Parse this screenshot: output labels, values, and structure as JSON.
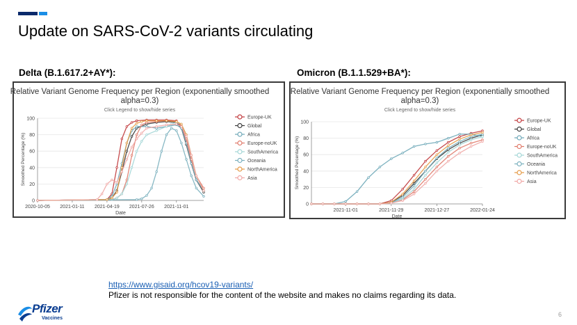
{
  "slide": {
    "title": "Update on SARS-CoV-2 variants circulating",
    "left_label": "Delta (B.1.617.2+AY*):",
    "right_label": "Omicron (B.1.1.529+BA*):",
    "link": "https://www.gisaid.org/hcov19-variants/",
    "disclaimer": "Pfizer is not responsible for the content of the website and makes no claims regarding its data.",
    "page_number": "6",
    "logo_text": "Pfizer",
    "logo_sub": "Vaccines"
  },
  "colors": {
    "Europe-UK": "#c0383b",
    "Global": "#3a3a3a",
    "Africa": "#6ea8b8",
    "Europe-noUK": "#e07a6a",
    "SouthAmerica": "#a3d6d6",
    "Oceania": "#7ab0be",
    "NorthAmerica": "#e59a45",
    "Asia": "#f0a8a6"
  },
  "chart_data": [
    {
      "type": "line",
      "title": "Relative Variant Genome Frequency per Region (exponentially smoothed alpha=0.3)",
      "subtitle": "Click Legend to show/hide series",
      "xlabel": "Date",
      "ylabel": "Smoothed Percentage (%)",
      "ylim": [
        0,
        100
      ],
      "yticks": [
        "0",
        "20",
        "40",
        "60",
        "80",
        "100"
      ],
      "x_tick_labels": [
        "2020-10-05",
        "2021-01-11",
        "2021-04-19",
        "2021-07-26",
        "2021-11-01"
      ],
      "x_tick_weeks": [
        0,
        14,
        28,
        42,
        56
      ],
      "x_range_weeks": [
        0,
        67
      ],
      "legend": [
        "Europe-UK",
        "Global",
        "Africa",
        "Europe-noUK",
        "SouthAmerica",
        "Oceania",
        "NorthAmerica",
        "Asia"
      ],
      "legend_position": "right",
      "series": [
        {
          "name": "Europe-UK",
          "x": [
            0,
            28,
            30,
            32,
            34,
            36,
            38,
            40,
            44,
            48,
            52,
            56,
            58,
            60,
            62,
            64,
            67
          ],
          "y": [
            0,
            1,
            8,
            40,
            75,
            90,
            95,
            97,
            98,
            98,
            98,
            97,
            90,
            70,
            45,
            25,
            12
          ]
        },
        {
          "name": "Global",
          "x": [
            0,
            28,
            30,
            32,
            34,
            36,
            38,
            40,
            44,
            48,
            52,
            56,
            58,
            60,
            62,
            64,
            67
          ],
          "y": [
            0,
            1,
            3,
            12,
            35,
            60,
            78,
            88,
            93,
            95,
            96,
            95,
            88,
            68,
            45,
            25,
            10
          ]
        },
        {
          "name": "Africa",
          "x": [
            0,
            28,
            30,
            32,
            34,
            36,
            38,
            40,
            44,
            48,
            52,
            56,
            58,
            60,
            62,
            64,
            67
          ],
          "y": [
            0,
            1,
            5,
            20,
            45,
            70,
            85,
            90,
            90,
            88,
            90,
            92,
            88,
            70,
            45,
            25,
            12
          ]
        },
        {
          "name": "Europe-noUK",
          "x": [
            0,
            30,
            32,
            34,
            36,
            38,
            40,
            42,
            44,
            48,
            52,
            56,
            58,
            60,
            62,
            64,
            67
          ],
          "y": [
            0,
            1,
            3,
            8,
            25,
            55,
            80,
            92,
            95,
            96,
            97,
            96,
            92,
            75,
            50,
            30,
            15
          ]
        },
        {
          "name": "SouthAmerica",
          "x": [
            0,
            30,
            32,
            34,
            36,
            38,
            40,
            42,
            44,
            48,
            52,
            54,
            56,
            58,
            60,
            62,
            64,
            67
          ],
          "y": [
            0,
            1,
            3,
            8,
            20,
            40,
            60,
            72,
            80,
            85,
            90,
            93,
            95,
            93,
            80,
            55,
            30,
            12
          ]
        },
        {
          "name": "Oceania",
          "x": [
            0,
            40,
            42,
            44,
            46,
            48,
            50,
            52,
            54,
            56,
            58,
            60,
            62,
            64,
            67
          ],
          "y": [
            0,
            1,
            2,
            6,
            15,
            35,
            60,
            80,
            88,
            85,
            70,
            50,
            30,
            15,
            5
          ]
        },
        {
          "name": "NorthAmerica",
          "x": [
            0,
            28,
            30,
            32,
            34,
            36,
            38,
            40,
            42,
            44,
            48,
            52,
            56,
            58,
            60,
            62,
            64,
            67
          ],
          "y": [
            0,
            1,
            3,
            10,
            40,
            70,
            88,
            94,
            96,
            97,
            97,
            97,
            96,
            93,
            80,
            55,
            30,
            12
          ]
        },
        {
          "name": "Asia",
          "x": [
            0,
            24,
            26,
            28,
            30,
            32,
            34,
            36,
            38,
            40,
            42,
            44,
            48,
            52,
            56,
            58,
            60,
            62,
            64,
            67
          ],
          "y": [
            0,
            1,
            8,
            20,
            25,
            22,
            35,
            50,
            65,
            75,
            82,
            88,
            90,
            92,
            93,
            90,
            78,
            55,
            30,
            12
          ]
        }
      ]
    },
    {
      "type": "line",
      "title": "Relative Variant Genome Frequency per Region (exponentially smoothed alpha=0.3)",
      "subtitle": "Click Legend to show/hide series",
      "xlabel": "Date",
      "ylabel": "Smoothed Percentage (%)",
      "ylim": [
        0,
        100
      ],
      "yticks": [
        "0",
        "20",
        "40",
        "60",
        "80",
        "100"
      ],
      "x_tick_labels": [
        "2021-11-01",
        "2021-11-29",
        "2021-12-27",
        "2022-01-24"
      ],
      "x_tick_weeks": [
        0,
        4,
        8,
        12
      ],
      "x_range_weeks": [
        -3,
        12
      ],
      "legend": [
        "Europe-UK",
        "Global",
        "Africa",
        "Europe-noUK",
        "SouthAmerica",
        "Oceania",
        "NorthAmerica",
        "Asia"
      ],
      "legend_position": "right",
      "series": [
        {
          "name": "Europe-UK",
          "x": [
            -3,
            -2,
            -1,
            0,
            1,
            2,
            3,
            4,
            5,
            6,
            7,
            8,
            9,
            10,
            11,
            12
          ],
          "y": [
            0,
            0,
            0,
            0,
            0,
            0,
            0,
            4,
            18,
            35,
            52,
            65,
            75,
            82,
            86,
            89
          ]
        },
        {
          "name": "Global",
          "x": [
            -3,
            -2,
            -1,
            0,
            1,
            2,
            3,
            4,
            5,
            6,
            7,
            8,
            9,
            10,
            11,
            12
          ],
          "y": [
            0,
            0,
            0,
            0,
            0,
            0,
            0,
            2,
            10,
            25,
            40,
            55,
            66,
            74,
            80,
            84
          ]
        },
        {
          "name": "Africa",
          "x": [
            -3,
            -2,
            -1,
            0,
            1,
            2,
            3,
            4,
            5,
            6,
            7,
            8,
            9,
            10,
            11,
            12
          ],
          "y": [
            0,
            0,
            0,
            3,
            15,
            32,
            45,
            55,
            62,
            70,
            73,
            75,
            80,
            85,
            85,
            82
          ]
        },
        {
          "name": "Europe-noUK",
          "x": [
            -3,
            -2,
            -1,
            0,
            1,
            2,
            3,
            4,
            5,
            6,
            7,
            8,
            9,
            10,
            11,
            12
          ],
          "y": [
            0,
            0,
            0,
            0,
            0,
            0,
            0,
            1,
            5,
            15,
            30,
            45,
            58,
            68,
            74,
            78
          ]
        },
        {
          "name": "SouthAmerica",
          "x": [
            -3,
            -2,
            -1,
            0,
            1,
            2,
            3,
            4,
            5,
            6,
            7,
            8,
            9,
            10,
            11,
            12
          ],
          "y": [
            0,
            0,
            0,
            0,
            0,
            0,
            0,
            1,
            6,
            18,
            35,
            50,
            63,
            72,
            78,
            82
          ]
        },
        {
          "name": "Oceania",
          "x": [
            -3,
            -2,
            -1,
            0,
            1,
            2,
            3,
            4,
            5,
            6,
            7,
            8,
            9,
            10,
            11,
            12
          ],
          "y": [
            0,
            0,
            0,
            0,
            0,
            0,
            0,
            1,
            8,
            22,
            40,
            56,
            68,
            76,
            82,
            85
          ]
        },
        {
          "name": "NorthAmerica",
          "x": [
            -3,
            -2,
            -1,
            0,
            1,
            2,
            3,
            4,
            5,
            6,
            7,
            8,
            9,
            10,
            11,
            12
          ],
          "y": [
            0,
            0,
            0,
            0,
            0,
            0,
            0,
            2,
            12,
            28,
            45,
            60,
            71,
            79,
            84,
            87
          ]
        },
        {
          "name": "Asia",
          "x": [
            -3,
            -2,
            -1,
            0,
            1,
            2,
            3,
            4,
            5,
            6,
            7,
            8,
            9,
            10,
            11,
            12
          ],
          "y": [
            0,
            0,
            0,
            0,
            0,
            0,
            0,
            1,
            4,
            12,
            25,
            40,
            52,
            62,
            70,
            76
          ]
        }
      ]
    }
  ]
}
